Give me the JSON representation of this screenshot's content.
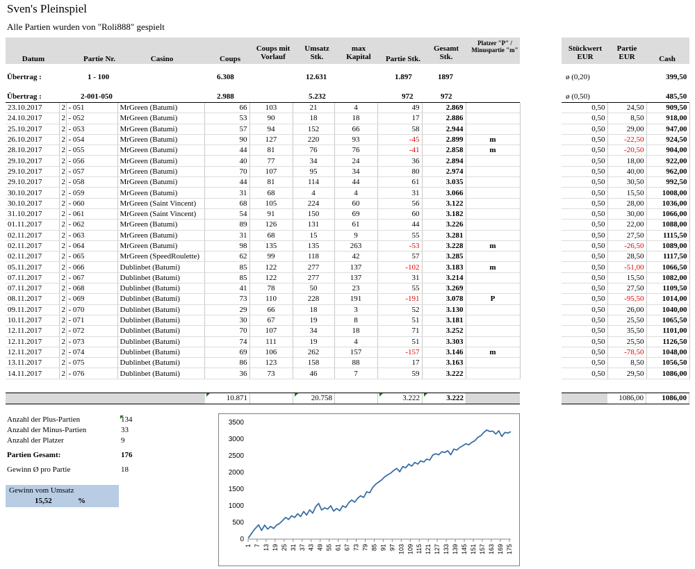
{
  "title": "Sven's Pleinspiel",
  "subtitle": "Alle Partien wurden von \"Roli888\" gespielt",
  "headers": {
    "datum": "Datum",
    "partie_nr": "Partie Nr.",
    "casino": "Casino",
    "coups": "Coups",
    "coups_mit_vorlauf": "Coups mit Vorlauf",
    "umsatz": "Umsatz Stk.",
    "max_kapital": "max Kapital",
    "partie_stk": "Partie Stk.",
    "gesamt_stk": "Gesamt Stk.",
    "platzer": "Platzer \"P\" / Minuspartie \"m\"",
    "stueckwert": "Stückwert EUR",
    "partie_eur": "Partie EUR",
    "cash": "Cash"
  },
  "uebertrag1": {
    "label": "Übertrag :",
    "nr": "1 - 100",
    "coups": "6.308",
    "umsatz": "12.631",
    "partie": "1.897",
    "gesamt": "1897",
    "stueck": "ø  (0,20)",
    "cash": "399,50"
  },
  "uebertrag2": {
    "label": "Übertrag :",
    "nr": "2-001-050",
    "coups": "2.988",
    "umsatz": "5.232",
    "partie": "972",
    "gesamt": "972",
    "stueck": "ø  (0,50)",
    "cash": "485,50"
  },
  "rows": [
    [
      "23.10.2017",
      "2",
      "- 051",
      "MrGreen (Batumi)",
      "66",
      "103",
      "21",
      "4",
      "49",
      "2.869",
      "",
      "0,50",
      "24,50",
      "909,50"
    ],
    [
      "24.10.2017",
      "2",
      "- 052",
      "MrGreen (Batumi)",
      "53",
      "90",
      "18",
      "18",
      "17",
      "2.886",
      "",
      "0,50",
      "8,50",
      "918,00"
    ],
    [
      "25.10.2017",
      "2",
      "- 053",
      "MrGreen (Batumi)",
      "57",
      "94",
      "152",
      "66",
      "58",
      "2.944",
      "",
      "0,50",
      "29,00",
      "947,00"
    ],
    [
      "26.10.2017",
      "2",
      "- 054",
      "MrGreen (Batumi)",
      "90",
      "127",
      "220",
      "93",
      "-45",
      "2.899",
      "m",
      "0,50",
      "-22,50",
      "924,50"
    ],
    [
      "28.10.2017",
      "2",
      "- 055",
      "MrGreen (Batumi)",
      "44",
      "81",
      "76",
      "76",
      "-41",
      "2.858",
      "m",
      "0,50",
      "-20,50",
      "904,00"
    ],
    [
      "29.10.2017",
      "2",
      "- 056",
      "MrGreen (Batumi)",
      "40",
      "77",
      "34",
      "24",
      "36",
      "2.894",
      "",
      "0,50",
      "18,00",
      "922,00"
    ],
    [
      "29.10.2017",
      "2",
      "- 057",
      "MrGreen (Batumi)",
      "70",
      "107",
      "95",
      "34",
      "80",
      "2.974",
      "",
      "0,50",
      "40,00",
      "962,00"
    ],
    [
      "29.10.2017",
      "2",
      "- 058",
      "MrGreen (Batumi)",
      "44",
      "81",
      "114",
      "44",
      "61",
      "3.035",
      "",
      "0,50",
      "30,50",
      "992,50"
    ],
    [
      "30.10.2017",
      "2",
      "- 059",
      "MrGreen (Batumi)",
      "31",
      "68",
      "4",
      "4",
      "31",
      "3.066",
      "",
      "0,50",
      "15,50",
      "1008,00"
    ],
    [
      "30.10.2017",
      "2",
      "- 060",
      "MrGreen (Saint Vincent)",
      "68",
      "105",
      "224",
      "60",
      "56",
      "3.122",
      "",
      "0,50",
      "28,00",
      "1036,00"
    ],
    [
      "31.10.2017",
      "2",
      "- 061",
      "MrGreen (Saint Vincent)",
      "54",
      "91",
      "150",
      "69",
      "60",
      "3.182",
      "",
      "0,50",
      "30,00",
      "1066,00"
    ],
    [
      "01.11.2017",
      "2",
      "- 062",
      "MrGreen (Batumi)",
      "89",
      "126",
      "131",
      "61",
      "44",
      "3.226",
      "",
      "0,50",
      "22,00",
      "1088,00"
    ],
    [
      "02.11.2017",
      "2",
      "- 063",
      "MrGreen (Batumi)",
      "31",
      "68",
      "15",
      "9",
      "55",
      "3.281",
      "",
      "0,50",
      "27,50",
      "1115,50"
    ],
    [
      "02.11.2017",
      "2",
      "- 064",
      "MrGreen (Batumi)",
      "98",
      "135",
      "135",
      "263",
      "-53",
      "3.228",
      "m",
      "0,50",
      "-26,50",
      "1089,00"
    ],
    [
      "02.11.2017",
      "2",
      "- 065",
      "MrGreen (SpeedRoulette)",
      "62",
      "99",
      "118",
      "42",
      "57",
      "3.285",
      "",
      "0,50",
      "28,50",
      "1117,50"
    ],
    [
      "05.11.2017",
      "2",
      "- 066",
      "Dublinbet (Batumi)",
      "85",
      "122",
      "277",
      "137",
      "-102",
      "3.183",
      "m",
      "0,50",
      "-51,00",
      "1066,50"
    ],
    [
      "07.11.2017",
      "2",
      "- 067",
      "Dublinbet (Batumi)",
      "85",
      "122",
      "277",
      "137",
      "31",
      "3.214",
      "",
      "0,50",
      "15,50",
      "1082,00"
    ],
    [
      "07.11.2017",
      "2",
      "- 068",
      "Dublinbet (Batumi)",
      "41",
      "78",
      "50",
      "23",
      "55",
      "3.269",
      "",
      "0,50",
      "27,50",
      "1109,50"
    ],
    [
      "08.11.2017",
      "2",
      "- 069",
      "Dublinbet (Batumi)",
      "73",
      "110",
      "228",
      "191",
      "-191",
      "3.078",
      "P",
      "0,50",
      "-95,50",
      "1014,00"
    ],
    [
      "09.11.2017",
      "2",
      "- 070",
      "Dublinbet (Batumi)",
      "29",
      "66",
      "18",
      "3",
      "52",
      "3.130",
      "",
      "0,50",
      "26,00",
      "1040,00"
    ],
    [
      "10.11.2017",
      "2",
      "- 071",
      "Dublinbet (Batumi)",
      "30",
      "67",
      "19",
      "8",
      "51",
      "3.181",
      "",
      "0,50",
      "25,50",
      "1065,50"
    ],
    [
      "12.11.2017",
      "2",
      "- 072",
      "Dublinbet (Batumi)",
      "70",
      "107",
      "34",
      "18",
      "71",
      "3.252",
      "",
      "0,50",
      "35,50",
      "1101,00"
    ],
    [
      "12.11.2017",
      "2",
      "- 073",
      "Dublinbet (Batumi)",
      "74",
      "111",
      "19",
      "4",
      "51",
      "3.303",
      "",
      "0,50",
      "25,50",
      "1126,50"
    ],
    [
      "12.11.2017",
      "2",
      "- 074",
      "Dublinbet (Batumi)",
      "69",
      "106",
      "262",
      "157",
      "-157",
      "3.146",
      "m",
      "0,50",
      "-78,50",
      "1048,00"
    ],
    [
      "13.11.2017",
      "2",
      "- 075",
      "Dublinbet (Batumi)",
      "86",
      "123",
      "158",
      "88",
      "17",
      "3.163",
      "",
      "0,50",
      "8,50",
      "1056,50"
    ],
    [
      "14.11.2017",
      "2",
      "- 076",
      "Dublinbet (Batumi)",
      "36",
      "73",
      "46",
      "7",
      "59",
      "3.222",
      "",
      "0,50",
      "29,50",
      "1086,00"
    ]
  ],
  "totals": {
    "coups": "10.871",
    "umsatz": "20.758",
    "partie": "3.222",
    "gesamt": "3.222",
    "partie_eur": "1086,00",
    "cash": "1086,00"
  },
  "stats": {
    "plus_label": "Anzahl der Plus-Partien",
    "plus": "134",
    "minus_label": "Anzahl der Minus-Partien",
    "minus": "33",
    "platzer_label": "Anzahl der Platzer",
    "platzer": "9",
    "gesamt_label": "Partien Gesamt:",
    "gesamt": "176",
    "gewinn_label": "Gewinn Ø  pro Partie",
    "gewinn": "18",
    "umsatz_label": "Gewinn vom Umsatz",
    "umsatz_pct": "15,52",
    "pct_sign": "%"
  },
  "colors": {
    "header_bg": "#dcdcdc",
    "negative": "#e00000",
    "line": "#3a6ea5",
    "box": "#b8cce4"
  },
  "chart_data": {
    "type": "line",
    "title": "",
    "xlabel": "",
    "ylabel": "",
    "ylim": [
      0,
      3500
    ],
    "yticks": [
      0,
      500,
      1000,
      1500,
      2000,
      2500,
      3000,
      3500
    ],
    "xticks": [
      1,
      7,
      13,
      19,
      25,
      31,
      37,
      43,
      49,
      55,
      61,
      67,
      73,
      79,
      85,
      91,
      97,
      103,
      109,
      115,
      121,
      127,
      133,
      139,
      145,
      151,
      157,
      163,
      169,
      175
    ],
    "x": [
      1,
      3,
      5,
      8,
      10,
      12,
      14,
      16,
      18,
      20,
      22,
      24,
      26,
      28,
      30,
      32,
      34,
      36,
      38,
      40,
      42,
      44,
      46,
      48,
      50,
      52,
      54,
      56,
      58,
      60,
      62,
      64,
      66,
      68,
      70,
      72,
      74,
      76,
      78,
      80,
      82,
      84,
      86,
      88,
      90,
      92,
      94,
      96,
      98,
      100,
      102,
      104,
      106,
      108,
      110,
      112,
      114,
      116,
      118,
      120,
      122,
      124,
      126,
      128,
      130,
      132,
      134,
      136,
      138,
      140,
      142,
      144,
      146,
      148,
      150,
      152,
      154,
      156,
      158,
      160,
      162,
      164,
      166,
      168,
      170,
      172,
      174,
      176
    ],
    "series": [
      {
        "values": [
          30,
          150,
          280,
          430,
          260,
          420,
          300,
          380,
          320,
          420,
          470,
          560,
          650,
          590,
          700,
          650,
          760,
          680,
          830,
          720,
          880,
          780,
          970,
          1070,
          870,
          940,
          900,
          1000,
          840,
          920,
          850,
          1000,
          950,
          1090,
          1170,
          1110,
          1230,
          1300,
          1250,
          1420,
          1390,
          1550,
          1650,
          1710,
          1780,
          1870,
          1930,
          1980,
          2060,
          2120,
          2020,
          2180,
          2140,
          2250,
          2190,
          2300,
          2250,
          2350,
          2310,
          2400,
          2370,
          2520,
          2560,
          2530,
          2620,
          2600,
          2650,
          2530,
          2700,
          2670,
          2750,
          2800,
          2860,
          2830,
          2900,
          2950,
          3050,
          3100,
          3200,
          3270,
          3230,
          3240,
          3150,
          3250,
          3080,
          3200,
          3180,
          3222
        ]
      }
    ]
  }
}
